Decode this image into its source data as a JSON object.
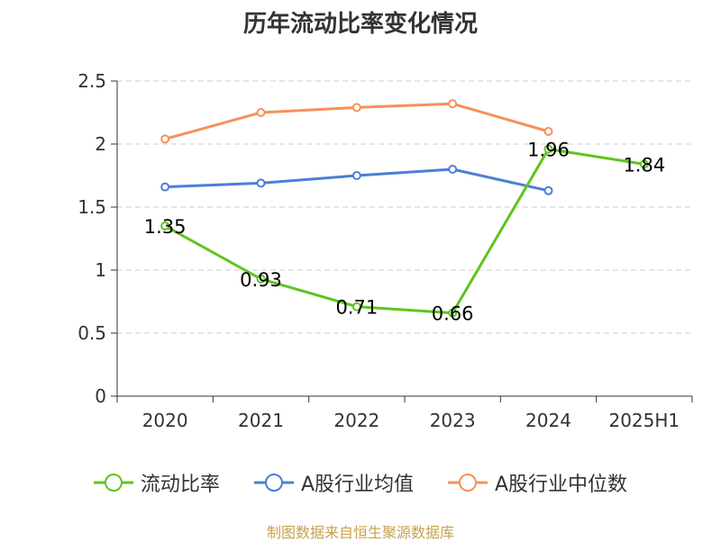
{
  "chart_data": {
    "type": "line",
    "title": "历年流动比率变化情况",
    "categories": [
      "2020",
      "2021",
      "2022",
      "2023",
      "2024",
      "2025H1"
    ],
    "ylim": [
      0,
      2.5
    ],
    "yticks": [
      0,
      0.5,
      1,
      1.5,
      2,
      2.5
    ],
    "ytick_labels": [
      "0",
      "0.5",
      "1",
      "1.5",
      "2",
      "2.5"
    ],
    "grid": true,
    "legend_position": "bottom",
    "series": [
      {
        "name": "流动比率",
        "color": "#5fc41f",
        "values": [
          1.35,
          0.93,
          0.71,
          0.66,
          1.96,
          1.84
        ],
        "labels": [
          "1.35",
          "0.93",
          "0.71",
          "0.66",
          "1.96",
          "1.84"
        ]
      },
      {
        "name": "A股行业均值",
        "color": "#4a7fd6",
        "values": [
          1.66,
          1.69,
          1.75,
          1.8,
          1.63,
          null
        ]
      },
      {
        "name": "A股行业中位数",
        "color": "#f5915a",
        "values": [
          2.04,
          2.25,
          2.29,
          2.32,
          2.1,
          null
        ]
      }
    ]
  },
  "source_note": "制图数据来自恒生聚源数据库"
}
